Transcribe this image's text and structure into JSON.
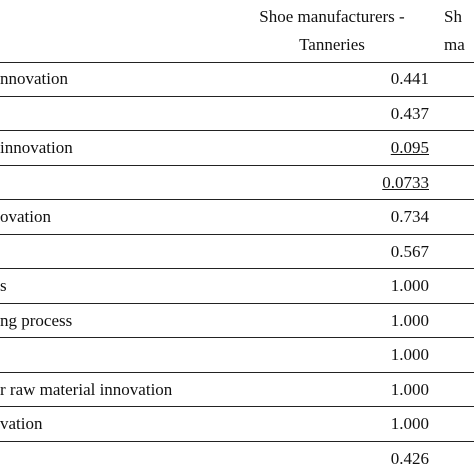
{
  "header": {
    "col1_line1": "Shoe manufacturers -",
    "col1_line2": "Tanneries",
    "col2_line1": "Sh",
    "col2_line2": "ma"
  },
  "rows": [
    {
      "label": "nnovation",
      "value": "0.441",
      "underline": false
    },
    {
      "label": "",
      "value": "0.437",
      "underline": false
    },
    {
      "label": "innovation",
      "value": "0.095",
      "underline": true
    },
    {
      "label": "",
      "value": "0.0733",
      "underline": true
    },
    {
      "label": "ovation",
      "value": "0.734",
      "underline": false
    },
    {
      "label": "",
      "value": "0.567",
      "underline": false
    },
    {
      "label": "s",
      "value": "1.000",
      "underline": false
    },
    {
      "label": "ng process",
      "value": "1.000",
      "underline": false
    },
    {
      "label": "",
      "value": "1.000",
      "underline": false
    },
    {
      "label": "r raw material innovation",
      "value": "1.000",
      "underline": false
    },
    {
      "label": "vation",
      "value": "1.000",
      "underline": false
    },
    {
      "label": "",
      "value": "0.426",
      "underline": false
    }
  ]
}
